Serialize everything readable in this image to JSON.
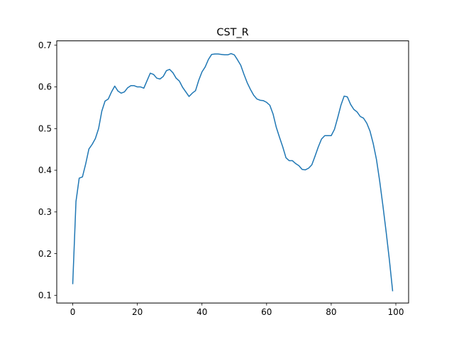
{
  "chart_data": {
    "type": "line",
    "title": "CST_R",
    "xlabel": "",
    "ylabel": "",
    "xlim": [
      -4.95,
      103.95
    ],
    "ylim": [
      0.0815,
      0.7105
    ],
    "xticks": [
      0,
      20,
      40,
      60,
      80,
      100
    ],
    "yticks": [
      0.1,
      0.2,
      0.3,
      0.4,
      0.5,
      0.6,
      0.7
    ],
    "xtick_labels": [
      "0",
      "20",
      "40",
      "60",
      "80",
      "100"
    ],
    "ytick_labels": [
      "0.1",
      "0.2",
      "0.3",
      "0.4",
      "0.5",
      "0.6",
      "0.7"
    ],
    "grid": false,
    "legend": "none",
    "series": [
      {
        "color": "#1f77b4",
        "x": [
          0,
          1,
          2,
          3,
          4,
          5,
          6,
          7,
          8,
          9,
          10,
          11,
          12,
          13,
          14,
          15,
          16,
          17,
          18,
          19,
          20,
          21,
          22,
          23,
          24,
          25,
          26,
          27,
          28,
          29,
          30,
          31,
          32,
          33,
          34,
          35,
          36,
          37,
          38,
          39,
          40,
          41,
          42,
          43,
          44,
          45,
          46,
          47,
          48,
          49,
          50,
          51,
          52,
          53,
          54,
          55,
          56,
          57,
          58,
          59,
          60,
          61,
          62,
          63,
          64,
          65,
          66,
          67,
          68,
          69,
          70,
          71,
          72,
          73,
          74,
          75,
          76,
          77,
          78,
          79,
          80,
          81,
          82,
          83,
          84,
          85,
          86,
          87,
          88,
          89,
          90,
          91,
          92,
          93,
          94,
          95,
          96,
          97,
          98,
          99
        ],
        "values": [
          0.128,
          0.325,
          0.381,
          0.384,
          0.415,
          0.451,
          0.462,
          0.476,
          0.5,
          0.542,
          0.566,
          0.571,
          0.588,
          0.602,
          0.59,
          0.585,
          0.588,
          0.598,
          0.603,
          0.603,
          0.6,
          0.6,
          0.597,
          0.615,
          0.633,
          0.63,
          0.621,
          0.619,
          0.625,
          0.639,
          0.642,
          0.634,
          0.621,
          0.614,
          0.599,
          0.588,
          0.577,
          0.585,
          0.591,
          0.616,
          0.636,
          0.648,
          0.666,
          0.678,
          0.679,
          0.679,
          0.678,
          0.677,
          0.677,
          0.68,
          0.677,
          0.665,
          0.652,
          0.63,
          0.61,
          0.594,
          0.58,
          0.571,
          0.568,
          0.567,
          0.563,
          0.556,
          0.535,
          0.503,
          0.479,
          0.456,
          0.43,
          0.423,
          0.423,
          0.416,
          0.411,
          0.402,
          0.401,
          0.405,
          0.413,
          0.434,
          0.456,
          0.475,
          0.483,
          0.483,
          0.483,
          0.498,
          0.526,
          0.556,
          0.578,
          0.576,
          0.558,
          0.546,
          0.54,
          0.529,
          0.525,
          0.513,
          0.494,
          0.464,
          0.426,
          0.374,
          0.315,
          0.252,
          0.185,
          0.111
        ]
      }
    ]
  }
}
